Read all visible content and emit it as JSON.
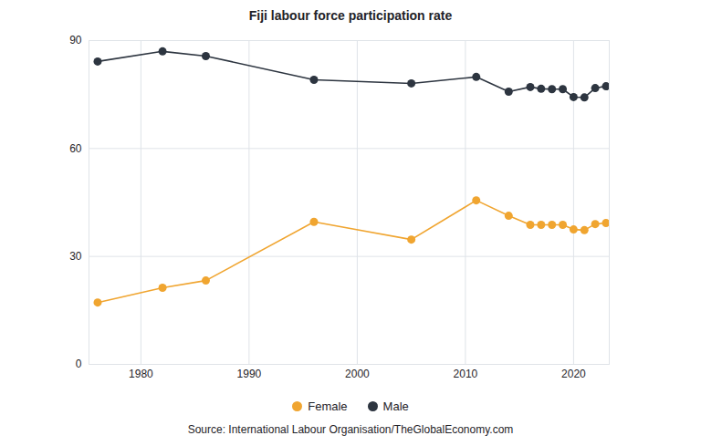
{
  "chart_data": {
    "type": "line",
    "title": "Fiji labour force participation rate",
    "caption": "Source: International Labour Organisation/TheGlobalEconomy.com",
    "x": [
      1976,
      1982,
      1986,
      1996,
      2005,
      2011,
      2014,
      2016,
      2017,
      2018,
      2019,
      2020,
      2021,
      2022,
      2023
    ],
    "series": [
      {
        "name": "Female",
        "color": "#f0a530",
        "marker": "circle",
        "values": [
          17.2,
          21.3,
          23.3,
          39.6,
          34.7,
          45.6,
          41.3,
          38.8,
          38.8,
          38.8,
          38.8,
          37.5,
          37.3,
          39.0,
          39.3
        ]
      },
      {
        "name": "Male",
        "color": "#2d3540",
        "marker": "circle",
        "values": [
          84.2,
          87.0,
          85.7,
          79.1,
          78.1,
          79.9,
          75.8,
          77.1,
          76.6,
          76.5,
          76.5,
          74.3,
          74.2,
          76.8,
          77.3
        ]
      }
    ],
    "xlim": [
      1975.2,
      2023.3
    ],
    "xticks": [
      1980,
      1990,
      2000,
      2010,
      2020
    ],
    "ylim": [
      0,
      90
    ],
    "yticks": [
      0,
      30,
      60,
      90
    ],
    "grid": true,
    "legend": "bottom"
  }
}
